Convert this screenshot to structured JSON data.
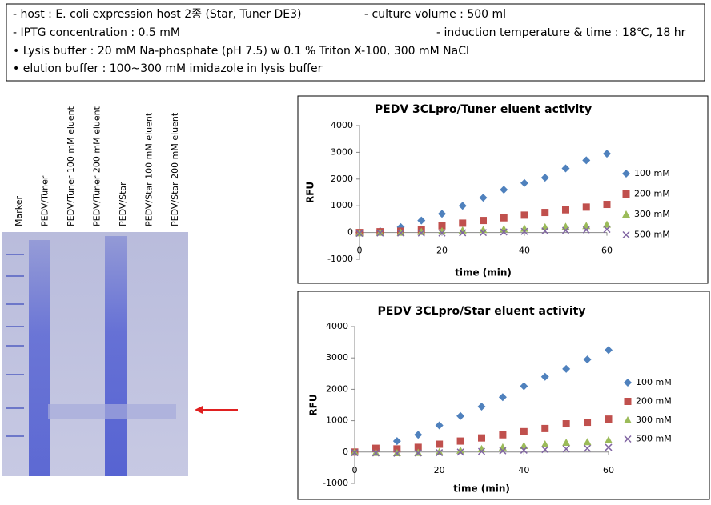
{
  "info_box": {
    "lines": [
      [
        "- host : E. coli expression host 2종 (Star, Tuner DE3)",
        "- culture volume : 500 ml"
      ],
      [
        "- IPTG concentration : 0.5 mM",
        "- induction temperature & time : 18℃, 18 hr"
      ],
      [
        "• Lysis buffer : 20 mM Na-phosphate (pH 7.5) w 0.1 % Triton X-100, 300 mM NaCl"
      ],
      [
        "• elution buffer : 100~300 mM imidazole in lysis buffer"
      ]
    ]
  },
  "gel": {
    "lanes": [
      "Marker",
      "PEDV/Tuner",
      "PEDV/Tuner 100 mM eluent",
      "PEDV/Tuner 200 mM eluent",
      "PEDV/Star",
      "PEDV/Star 100 mM eluent",
      "PEDV/Star 200 mM eluent"
    ]
  },
  "chart_data": [
    {
      "type": "scatter",
      "title": "PEDV 3CLpro/Tuner eluent activity",
      "x_label": "time (min)",
      "y_label": "RFU",
      "x": [
        0,
        5,
        10,
        15,
        20,
        25,
        30,
        35,
        40,
        45,
        50,
        55,
        60
      ],
      "xlim": [
        0,
        60
      ],
      "xticks": [
        0,
        20,
        40,
        60
      ],
      "ylim": [
        -1000,
        4000
      ],
      "yticks": [
        -1000,
        0,
        1000,
        2000,
        3000,
        4000
      ],
      "legend": "right",
      "series": [
        {
          "name": "100 mM",
          "color": "#4f81bd",
          "marker": "diamond",
          "values": [
            0,
            50,
            200,
            450,
            700,
            1000,
            1300,
            1600,
            1850,
            2050,
            2400,
            2700,
            2950
          ]
        },
        {
          "name": "200 mM",
          "color": "#c0504d",
          "marker": "square",
          "values": [
            0,
            30,
            50,
            100,
            250,
            350,
            450,
            550,
            650,
            750,
            850,
            950,
            1050
          ]
        },
        {
          "name": "300 mM",
          "color": "#9bbb59",
          "marker": "triangle",
          "values": [
            -20,
            0,
            0,
            30,
            50,
            80,
            100,
            130,
            150,
            200,
            220,
            250,
            300
          ]
        },
        {
          "name": "500 mM",
          "color": "#8064a2",
          "marker": "x",
          "values": [
            -30,
            -20,
            -20,
            -20,
            -20,
            -10,
            0,
            20,
            40,
            60,
            80,
            100,
            120
          ]
        }
      ]
    },
    {
      "type": "scatter",
      "title": "PEDV 3CLpro/Star eluent activity",
      "x_label": "time (min)",
      "y_label": "RFU",
      "x": [
        0,
        5,
        10,
        15,
        20,
        25,
        30,
        35,
        40,
        45,
        50,
        55,
        60
      ],
      "xlim": [
        0,
        60
      ],
      "xticks": [
        0,
        20,
        40,
        60
      ],
      "ylim": [
        -1000,
        4000
      ],
      "yticks": [
        -1000,
        0,
        1000,
        2000,
        3000,
        4000
      ],
      "legend": "right",
      "series": [
        {
          "name": "100 mM",
          "color": "#4f81bd",
          "marker": "diamond",
          "values": [
            0,
            100,
            350,
            550,
            850,
            1150,
            1450,
            1750,
            2100,
            2400,
            2650,
            2950,
            3250
          ]
        },
        {
          "name": "200 mM",
          "color": "#c0504d",
          "marker": "square",
          "values": [
            0,
            120,
            100,
            150,
            250,
            350,
            450,
            550,
            650,
            750,
            900,
            950,
            1050
          ]
        },
        {
          "name": "300 mM",
          "color": "#9bbb59",
          "marker": "triangle",
          "values": [
            0,
            -20,
            -30,
            -20,
            0,
            50,
            100,
            150,
            200,
            250,
            300,
            320,
            380
          ]
        },
        {
          "name": "500 mM",
          "color": "#8064a2",
          "marker": "x",
          "values": [
            -20,
            -30,
            -40,
            -30,
            -20,
            0,
            20,
            40,
            60,
            80,
            100,
            120,
            150
          ]
        }
      ]
    }
  ]
}
